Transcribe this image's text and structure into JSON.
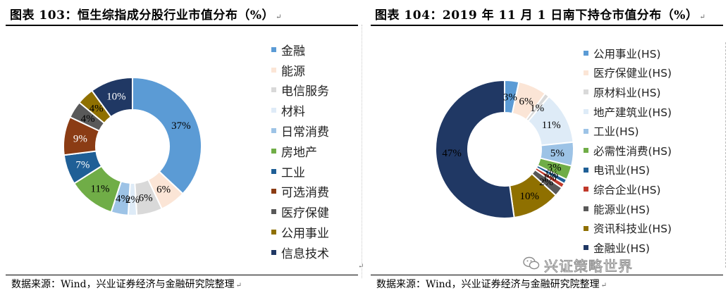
{
  "left": {
    "title": "图表 103：恒生综指成分股行业市值分布（%）",
    "source": "数据来源：Wind，兴业证券经济与金融研究院整理",
    "legend": [
      {
        "label": "金融",
        "color": "#5b9bd5"
      },
      {
        "label": "能源",
        "color": "#fbe5d6"
      },
      {
        "label": "电信服务",
        "color": "#d9d9d9"
      },
      {
        "label": "材料",
        "color": "#deebf7"
      },
      {
        "label": "日常消费",
        "color": "#9dc3e6"
      },
      {
        "label": "房地产",
        "color": "#70ad47"
      },
      {
        "label": "工业",
        "color": "#1f5f96"
      },
      {
        "label": "可选消费",
        "color": "#8b3c14"
      },
      {
        "label": "医疗保健",
        "color": "#595959"
      },
      {
        "label": "公用事业",
        "color": "#8f7000"
      },
      {
        "label": "信息技术",
        "color": "#203864"
      }
    ]
  },
  "right": {
    "title": "图表 104：2019 年 11 月 1 日南下持仓市值分布（%）",
    "source": "数据来源：Wind，兴业证券经济与金融研究院整理",
    "watermark": "兴证策略世界",
    "legend": [
      {
        "label": "公用事业(HS)",
        "color": "#5b9bd5"
      },
      {
        "label": "医疗保健业(HS)",
        "color": "#fbe5d6"
      },
      {
        "label": "原材料业(HS)",
        "color": "#d9d9d9"
      },
      {
        "label": "地产建筑业(HS)",
        "color": "#deebf7"
      },
      {
        "label": "工业(HS)",
        "color": "#9dc3e6"
      },
      {
        "label": "必需性消费(HS)",
        "color": "#70ad47"
      },
      {
        "label": "电讯业(HS)",
        "color": "#1f5f96"
      },
      {
        "label": "综合企业(HS)",
        "color": "#c0392b"
      },
      {
        "label": "能源业(HS)",
        "color": "#595959"
      },
      {
        "label": "资讯科技业(HS)",
        "color": "#8f7000"
      },
      {
        "label": "金融业(HS)",
        "color": "#203864"
      }
    ]
  },
  "chart_data": [
    {
      "type": "pie",
      "style": "donut",
      "categories": [
        "金融",
        "能源",
        "电信服务",
        "材料",
        "日常消费",
        "房地产",
        "工业",
        "可选消费",
        "医疗保健",
        "公用事业",
        "信息技术"
      ],
      "values": [
        37,
        6,
        6,
        2,
        4,
        11,
        7,
        9,
        4,
        4,
        10
      ],
      "data_labels": [
        "37%",
        "6%",
        "6%",
        "2%",
        "4%",
        "11%",
        "7%",
        "9%",
        "4%",
        "4%",
        "10%"
      ],
      "colors": [
        "#5b9bd5",
        "#fbe5d6",
        "#d9d9d9",
        "#deebf7",
        "#9dc3e6",
        "#70ad47",
        "#1f5f96",
        "#8b3c14",
        "#595959",
        "#8f7000",
        "#203864"
      ],
      "label_colors": [
        "#000000",
        "#000000",
        "#000000",
        "#000000",
        "#000000",
        "#000000",
        "#ffffff",
        "#ffffff",
        "#000000",
        "#000000",
        "#ffffff"
      ],
      "start_angle_deg": 0,
      "legend_position": "right"
    },
    {
      "type": "pie",
      "style": "donut",
      "categories": [
        "公用事业(HS)",
        "医疗保健业(HS)",
        "原材料业(HS)",
        "地产建筑业(HS)",
        "工业(HS)",
        "必需性消费(HS)",
        "电讯业(HS)",
        "综合企业(HS)",
        "能源业(HS)",
        "资讯科技业(HS)",
        "金融业(HS)"
      ],
      "values": [
        3,
        6,
        1,
        11,
        5,
        3,
        1,
        1,
        2,
        10,
        47
      ],
      "data_labels": [
        "3%",
        "6%",
        "1%",
        "11%",
        "5%",
        "3%",
        "1%",
        "1%",
        "2%",
        "10%",
        "47%"
      ],
      "colors": [
        "#5b9bd5",
        "#fbe5d6",
        "#d9d9d9",
        "#deebf7",
        "#9dc3e6",
        "#70ad47",
        "#1f5f96",
        "#c0392b",
        "#595959",
        "#8f7000",
        "#203864"
      ],
      "label_colors": [
        "#000000",
        "#000000",
        "#000000",
        "#000000",
        "#000000",
        "#000000",
        "#000000",
        "#000000",
        "#000000",
        "#000000",
        "#000000"
      ],
      "start_angle_deg": 0,
      "legend_position": "right"
    }
  ]
}
